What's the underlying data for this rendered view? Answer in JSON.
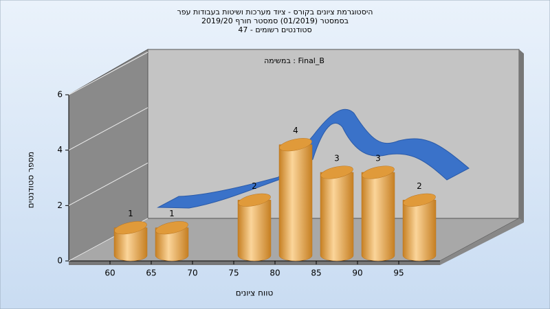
{
  "chart_data": {
    "type": "histogram",
    "title": "היסטוגרמת ציונים בקורס - ציוד מערכות ושיטות בעבודות עפר",
    "subtitle": "בסמסטר (01/2019) סמסטר חורף 2019/20",
    "subtitle2": "סטודנטים רשומים - 47",
    "annotation": "במשימה : Final_B",
    "xlabel": "טווח ציונים",
    "ylabel": "מספר סטודנטים",
    "bins": [
      60,
      65,
      70,
      75,
      80,
      85,
      90,
      95,
      100
    ],
    "values": [
      1,
      1,
      0,
      2,
      4,
      3,
      3,
      2
    ],
    "color": "#e8a448",
    "xlim": [
      55,
      100
    ],
    "xticks": [
      60,
      65,
      70,
      75,
      80,
      85,
      90,
      95
    ],
    "ylim": [
      0,
      6
    ],
    "yticks": [
      0,
      2,
      4,
      6
    ]
  }
}
